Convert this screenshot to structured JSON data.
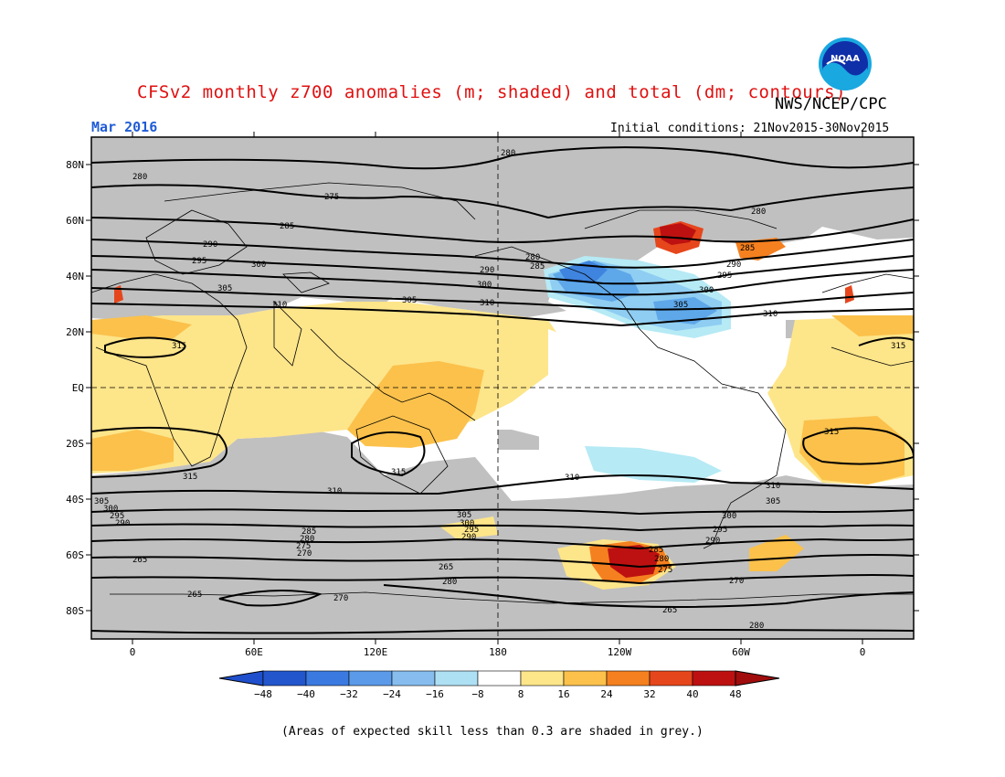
{
  "header": {
    "title": "CFSv2 monthly z700 anomalies (m; shaded) and total (dm; contours)",
    "agency": "NWS/NCEP/CPC",
    "month": "Mar 2016",
    "initial_conditions": "Initial conditions: 21Nov2015-30Nov2015",
    "logo_text": "NOAA"
  },
  "map": {
    "lat_labels": [
      "80N",
      "60N",
      "40N",
      "20N",
      "EQ",
      "20S",
      "40S",
      "60S",
      "80S"
    ],
    "lon_labels": [
      "0",
      "60E",
      "120E",
      "180",
      "120W",
      "60W",
      "0"
    ],
    "contour_labels": [
      "265",
      "270",
      "275",
      "280",
      "285",
      "290",
      "295",
      "300",
      "305",
      "310",
      "315"
    ],
    "colors": {
      "skill_grey": "#c0c0c0",
      "pos_8_16": "#fde58a",
      "pos_16_24": "#fbc14b",
      "pos_24_32": "#f5801f",
      "pos_32_40": "#e6461c",
      "pos_40_48": "#bd1111",
      "neg_8_16": "#b6eaf5",
      "neg_16_24": "#8fcdf2",
      "neg_24_32": "#5ea8ea",
      "neg_32_40": "#3f84df"
    }
  },
  "colorbar": {
    "labels": [
      "-48",
      "-40",
      "-32",
      "-24",
      "-16",
      "-8",
      "8",
      "16",
      "24",
      "32",
      "40",
      "48"
    ],
    "colors": [
      "#2356cc",
      "#3a7ae0",
      "#5b9ae8",
      "#86bdee",
      "#aee0f4",
      "#ffffff",
      "#fde58a",
      "#fbc14b",
      "#f5801f",
      "#e6461c",
      "#bd1111"
    ],
    "end_low": "#1f4fcc",
    "end_high": "#a10d0d"
  },
  "footnote": "(Areas of expected skill less than 0.3 are shaded in grey.)"
}
